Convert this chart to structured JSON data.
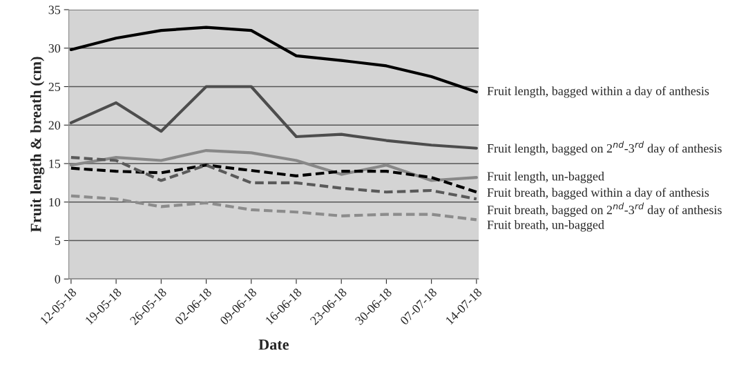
{
  "chart_data": {
    "type": "line",
    "xlabel": "Date",
    "ylabel": "Fruit length & breath (cm)",
    "categories": [
      "12-05-18",
      "19-05-18",
      "26-05-18",
      "02-06-18",
      "09-06-18",
      "16-06-18",
      "23-06-18",
      "30-06-18",
      "07-07-18",
      "14-07-18"
    ],
    "ylim": [
      0,
      35
    ],
    "yticks": [
      0,
      5,
      10,
      15,
      20,
      25,
      30,
      35
    ],
    "grid": "y",
    "legend": "right",
    "marker": "none",
    "series": [
      {
        "name": "Fruit length, bagged within a day of anthesis",
        "color": "#000000",
        "line_style": "solid",
        "values": [
          29.8,
          31.3,
          32.3,
          32.7,
          32.3,
          29.0,
          28.4,
          27.7,
          26.3,
          24.3
        ]
      },
      {
        "name": "Fruit length, bagged on 2$^{nd}$-3$^{rd}$ day of anthesis",
        "color": "#4d4d4d",
        "line_style": "solid",
        "values": [
          20.3,
          22.9,
          19.2,
          25.0,
          25.0,
          18.5,
          18.8,
          18.0,
          17.4,
          17.0
        ]
      },
      {
        "name": "Fruit length, un-bagged",
        "color": "#888888",
        "line_style": "solid",
        "values": [
          14.8,
          15.8,
          15.4,
          16.7,
          16.4,
          15.4,
          13.6,
          14.8,
          12.8,
          13.2
        ]
      },
      {
        "name": "Fruit breath, bagged within a day of anthesis",
        "color": "#000000",
        "line_style": "dashed",
        "values": [
          14.4,
          14.0,
          13.8,
          14.8,
          14.1,
          13.4,
          14.0,
          14.0,
          13.2,
          11.3
        ]
      },
      {
        "name": "Fruit breath, bagged on 2$^{nd}$-3$^{rd}$ day of anthesis",
        "color": "#5a5a5a",
        "line_style": "dashed",
        "values": [
          15.8,
          15.4,
          12.8,
          14.8,
          12.5,
          12.5,
          11.8,
          11.3,
          11.5,
          10.4
        ]
      },
      {
        "name": "Fruit breath, un-bagged",
        "color": "#8c8c8c",
        "line_style": "dashed",
        "values": [
          10.8,
          10.4,
          9.4,
          9.9,
          9.0,
          8.7,
          8.2,
          8.4,
          8.4,
          7.7
        ]
      }
    ]
  }
}
